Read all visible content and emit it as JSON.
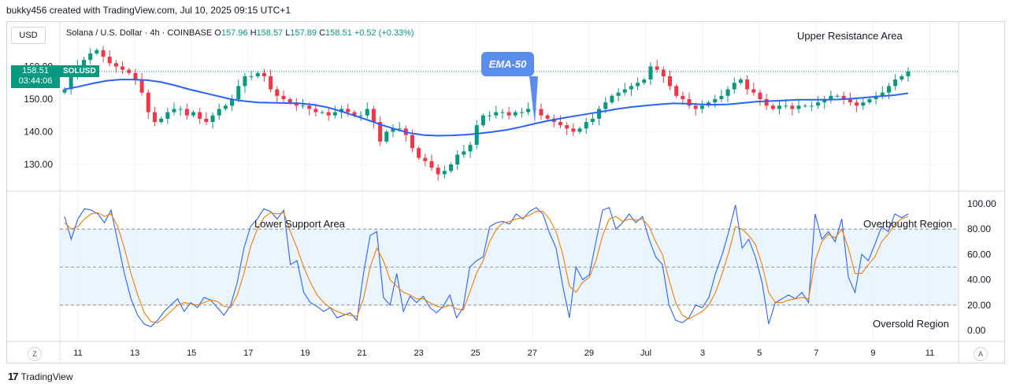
{
  "header": {
    "line": "bukky456 created with TradingView.com, Jul 10, 2025 09:15 UTC+1"
  },
  "toolbar": {
    "currency": "USD"
  },
  "symbol": {
    "name": "Solana / U.S. Dollar · 4h · COINBASE",
    "open_label": "O",
    "open": "157.96",
    "high_label": "H",
    "high": "158.57",
    "low_label": "L",
    "low": "157.89",
    "close_label": "C",
    "close": "158.51",
    "change": "+0.52 (+0.33%)"
  },
  "price_badge": {
    "price": "158.51",
    "countdown": "03:44:06",
    "ticker": "SOLUSD"
  },
  "annotations": {
    "upper_resistance": "Upper Resistance Area",
    "lower_support": "Lower Support Area",
    "overbought": "Overbought Region",
    "oversold": "Oversold Region",
    "ema": "EMA-50"
  },
  "bottom": {
    "zoom_left": "Z",
    "zoom_right": "A",
    "brand": "TradingView"
  },
  "colors": {
    "up": "#089981",
    "down": "#f23645",
    "ema": "#2962ff",
    "stoch_k": "#2962ff",
    "stoch_d": "#f57c00",
    "band": "#e3f1fc",
    "callout": "#5b8def"
  },
  "chart_data": [
    {
      "type": "candlestick",
      "title": "Solana / U.S. Dollar · 4h · COINBASE",
      "x_tick_labels": [
        "11",
        "13",
        "15",
        "17",
        "19",
        "21",
        "23",
        "25",
        "27",
        "29",
        "Jul",
        "3",
        "5",
        "7",
        "9",
        "11"
      ],
      "y_tick_labels": [
        "130.00",
        "140.00",
        "150.00",
        "160.00"
      ],
      "ylim": [
        123,
        170
      ],
      "grid": true,
      "closes": [
        153,
        157,
        160,
        162,
        164,
        165,
        163,
        161,
        160,
        159,
        158,
        156,
        152,
        146,
        143,
        144,
        146,
        147,
        147,
        145,
        146,
        144,
        143,
        145,
        147,
        148,
        150,
        154,
        157,
        157,
        158,
        157,
        153,
        151,
        150,
        149,
        148,
        148,
        147,
        146,
        146,
        145,
        146,
        147,
        146,
        145,
        145,
        147,
        143,
        137,
        140,
        141,
        141,
        139,
        135,
        132,
        131,
        129,
        127,
        128,
        130,
        133,
        134,
        136,
        142,
        145,
        145,
        146,
        146,
        145,
        146,
        146,
        147,
        147,
        145,
        144,
        143,
        142,
        141,
        140,
        141,
        143,
        144,
        147,
        149,
        151,
        152,
        153,
        154,
        155,
        156,
        160,
        159,
        157,
        154,
        151,
        150,
        148,
        147,
        148,
        149,
        150,
        151,
        153,
        155,
        156,
        153,
        152,
        150,
        148,
        147,
        148,
        148,
        147,
        148,
        148,
        148,
        149,
        150,
        151,
        151,
        150,
        149,
        148,
        149,
        150,
        151,
        152,
        154,
        156,
        157,
        158.51
      ],
      "ema50": [
        153,
        153.8,
        154.8,
        155.6,
        156,
        156,
        155.8,
        155.2,
        154.2,
        153,
        152,
        151,
        150,
        149.4,
        149,
        148.9,
        148.8,
        148.7,
        148.3,
        147.5,
        146.3,
        144.9,
        143.5,
        142,
        140.7,
        139.6,
        139,
        138.8,
        138.9,
        139.1,
        139.5,
        140,
        140.6,
        141.5,
        142.5,
        143.4,
        144.2,
        144.9,
        145.6,
        146.3,
        147,
        147.6,
        148,
        148.4,
        148.7,
        148.6,
        148.4,
        148.3,
        148.4,
        148.8,
        149.2,
        149.4,
        149.6,
        149.8,
        149.8,
        149.8,
        149.9,
        150.2,
        150.5,
        150.9,
        151.2,
        151.8
      ],
      "ema50_label": "EMA-50",
      "annotations": [
        "Upper Resistance Area",
        "EMA-50"
      ]
    },
    {
      "type": "line",
      "title": "Stochastic oscillator",
      "y_tick_labels": [
        "0.00",
        "20.00",
        "40.00",
        "60.00",
        "80.00",
        "100.00"
      ],
      "ylim": [
        0,
        100
      ],
      "levels": [
        20,
        50,
        80
      ],
      "series": [
        {
          "values": [
            90,
            72,
            88,
            96,
            95,
            92,
            85,
            95,
            70,
            45,
            25,
            12,
            5,
            3,
            8,
            15,
            20,
            25,
            15,
            22,
            18,
            26,
            24,
            18,
            12,
            20,
            38,
            65,
            82,
            88,
            96,
            94,
            88,
            95,
            52,
            55,
            30,
            22,
            19,
            15,
            18,
            10,
            12,
            14,
            8,
            45,
            75,
            78,
            26,
            20,
            45,
            15,
            27,
            22,
            27,
            18,
            14,
            19,
            28,
            10,
            18,
            50,
            55,
            58,
            82,
            85,
            86,
            84,
            92,
            88,
            94,
            97,
            92,
            77,
            65,
            35,
            10,
            50,
            40,
            44,
            70,
            95,
            97,
            80,
            85,
            92,
            85,
            90,
            72,
            58,
            52,
            20,
            8,
            6,
            10,
            20,
            18,
            26,
            45,
            60,
            78,
            99,
            65,
            72,
            58,
            38,
            5,
            22,
            25,
            28,
            25,
            30,
            22,
            92,
            72,
            78,
            70,
            88,
            42,
            30,
            60,
            55,
            68,
            82,
            78,
            92,
            89,
            92
          ]
        },
        {
          "values": [
            85,
            80,
            82,
            88,
            92,
            93,
            90,
            92,
            82,
            65,
            45,
            28,
            14,
            7,
            6,
            10,
            15,
            20,
            22,
            21,
            20,
            22,
            24,
            23,
            19,
            18,
            28,
            45,
            66,
            80,
            89,
            93,
            92,
            93,
            78,
            65,
            50,
            38,
            28,
            22,
            18,
            15,
            13,
            12,
            11,
            25,
            50,
            65,
            55,
            40,
            35,
            30,
            28,
            25,
            25,
            22,
            19,
            18,
            20,
            17,
            16,
            30,
            45,
            55,
            70,
            80,
            85,
            86,
            88,
            89,
            91,
            94,
            94,
            88,
            78,
            60,
            35,
            30,
            38,
            42,
            55,
            75,
            88,
            90,
            86,
            88,
            87,
            88,
            82,
            70,
            60,
            40,
            22,
            12,
            9,
            12,
            15,
            20,
            30,
            45,
            62,
            82,
            80,
            75,
            68,
            52,
            30,
            22,
            22,
            24,
            25,
            26,
            25,
            55,
            70,
            76,
            73,
            80,
            65,
            45,
            45,
            52,
            58,
            70,
            76,
            84,
            88,
            90
          ]
        }
      ],
      "annotations": [
        "Lower Support Area",
        "Overbought Region",
        "Oversold Region"
      ]
    }
  ]
}
